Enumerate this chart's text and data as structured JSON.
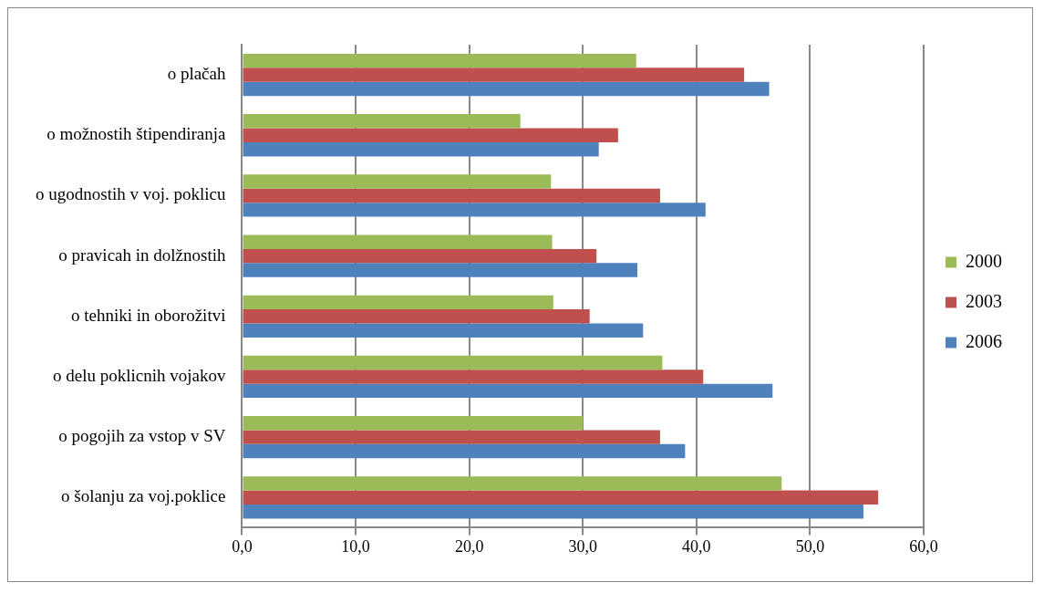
{
  "chart_data": {
    "type": "bar",
    "orientation": "horizontal",
    "categories": [
      "o plačah",
      "o možnostih štipendiranja",
      "o ugodnostih v voj. poklicu",
      "o pravicah in dolžnostih",
      "o tehniki in oborožitvi",
      "o delu poklicnih vojakov",
      "o pogojih za vstop v SV",
      "o šolanju za voj.poklice"
    ],
    "series": [
      {
        "name": "2000",
        "color": "#9bbb59",
        "values": [
          34.7,
          24.5,
          27.2,
          27.3,
          27.4,
          37.0,
          30.0,
          47.5
        ]
      },
      {
        "name": "2003",
        "color": "#c0504d",
        "values": [
          44.2,
          33.1,
          36.8,
          31.2,
          30.6,
          40.6,
          36.8,
          56.0
        ]
      },
      {
        "name": "2006",
        "color": "#4f81bd",
        "values": [
          46.4,
          31.4,
          40.8,
          34.8,
          35.3,
          46.7,
          39.0,
          54.7
        ]
      }
    ],
    "xlim": [
      0,
      60
    ],
    "xticks": [
      {
        "value": 0,
        "label": "0,0"
      },
      {
        "value": 10,
        "label": "10,0"
      },
      {
        "value": 20,
        "label": "20,0"
      },
      {
        "value": 30,
        "label": "30,0"
      },
      {
        "value": 40,
        "label": "40,0"
      },
      {
        "value": 50,
        "label": "50,0"
      },
      {
        "value": 60,
        "label": "60,0"
      }
    ],
    "grid": "x",
    "legend": "right"
  }
}
